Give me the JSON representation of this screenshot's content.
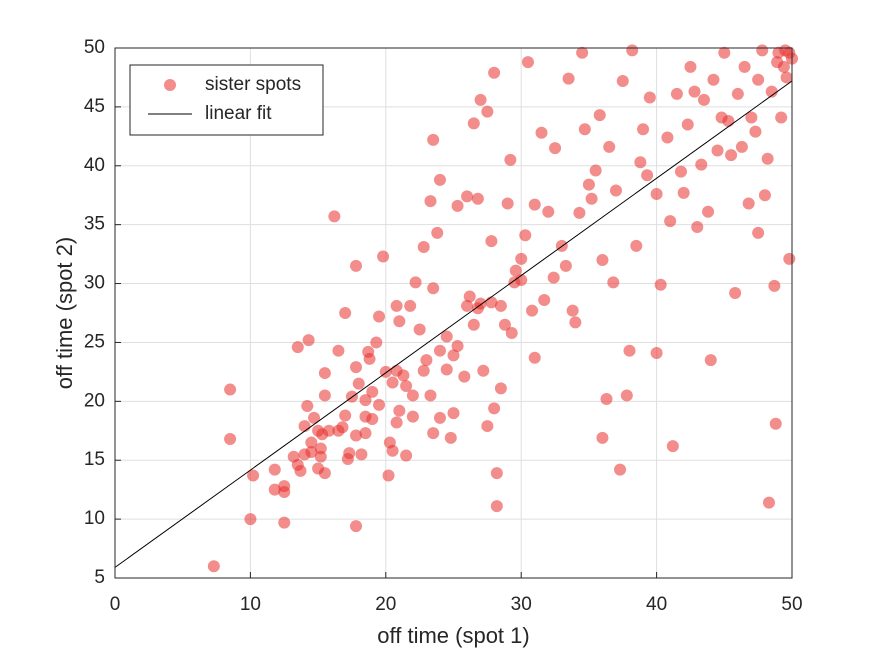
{
  "chart_data": {
    "type": "scatter",
    "xlabel": "off time (spot 1)",
    "ylabel": "off time (spot 2)",
    "xlim": [
      0,
      50
    ],
    "ylim": [
      5,
      50
    ],
    "xticks": [
      0,
      10,
      20,
      30,
      40,
      50
    ],
    "yticks": [
      5,
      10,
      15,
      20,
      25,
      30,
      35,
      40,
      45,
      50
    ],
    "grid": true,
    "legend": "upper left",
    "series": [
      {
        "name": "sister spots",
        "color": "#e8302b",
        "type": "scatter",
        "x": [
          7.3,
          8.5,
          8.5,
          10,
          10.2,
          11.8,
          11.8,
          12.5,
          12.5,
          12.5,
          13.2,
          13.5,
          13.7,
          14,
          14,
          14.2,
          14.3,
          14.5,
          14.5,
          14.7,
          15,
          15,
          15.2,
          15.2,
          15.3,
          15.5,
          15.5,
          15.5,
          15.8,
          16.2,
          16.5,
          16.5,
          16.8,
          17,
          17,
          17.2,
          17.3,
          17.5,
          17.8,
          17.8,
          17.8,
          17.8,
          18,
          18.2,
          18.5,
          18.5,
          18.7,
          18.8,
          19,
          19,
          19.3,
          19.5,
          19.5,
          19.8,
          20,
          20.2,
          20.3,
          20.5,
          20.5,
          20.8,
          20.8,
          21,
          21,
          21.3,
          21.5,
          21.5,
          21.8,
          22,
          22,
          22.2,
          22.5,
          22.8,
          23,
          23.3,
          23.3,
          23.5,
          23.5,
          23.5,
          23.8,
          24,
          24,
          24,
          24.5,
          24.5,
          24.8,
          25,
          25,
          25.3,
          25.8,
          26,
          26,
          26.2,
          26.5,
          26.5,
          26.8,
          27,
          27,
          27.2,
          27.5,
          27.5,
          27.8,
          28,
          28,
          28.2,
          28.2,
          28.5,
          28.5,
          28.8,
          29,
          29.2,
          29.3,
          29.5,
          30,
          30,
          30.3,
          30.5,
          30.8,
          31,
          31,
          31.5,
          32,
          32.5,
          33,
          33.3,
          33.5,
          33.8,
          34,
          34.3,
          34.5,
          34.7,
          35,
          35.2,
          35.5,
          35.8,
          36,
          36,
          36.3,
          36.5,
          36.8,
          37,
          37.3,
          37.5,
          37.8,
          38,
          38.2,
          38.5,
          38.8,
          39,
          39.3,
          39.5,
          40,
          40,
          40.3,
          40.8,
          41,
          41.2,
          41.5,
          41.8,
          42,
          42.3,
          42.5,
          42.8,
          43,
          43.3,
          43.5,
          43.8,
          44,
          44.2,
          44.5,
          44.8,
          45,
          45.3,
          45.5,
          45.8,
          46,
          46.3,
          46.5,
          46.8,
          47,
          47.3,
          47.5,
          47.8,
          48,
          48.2,
          48.3,
          48.5,
          48.7,
          48.8,
          49,
          49.2,
          49.4,
          49.6,
          49.8,
          49.8,
          50,
          49.5,
          48.9,
          47.5,
          26.8,
          27.8,
          29.6,
          32.4,
          31.7,
          25.3,
          22.8,
          18.5,
          20.8,
          13.5
        ],
        "values": [
          6.0,
          21.0,
          16.8,
          10,
          13.7,
          14.2,
          12.5,
          12.8,
          12.3,
          9.7,
          15.3,
          24.6,
          14.1,
          15.5,
          17.9,
          19.6,
          25.2,
          15.7,
          16.5,
          18.6,
          17.5,
          14.3,
          15.3,
          16,
          17.2,
          22.4,
          20.5,
          13.9,
          17.5,
          35.7,
          24.3,
          17.5,
          17.8,
          27.5,
          18.8,
          15.1,
          15.6,
          20.4,
          31.5,
          22.9,
          17.1,
          9.4,
          21.5,
          15.5,
          17.3,
          18.7,
          24.2,
          23.6,
          20.8,
          18.5,
          25,
          27.2,
          19.7,
          32.3,
          22.5,
          13.7,
          16.5,
          15.8,
          21.6,
          28.1,
          22.6,
          26.8,
          19.2,
          22.2,
          21.3,
          15.4,
          28.1,
          20.5,
          18.7,
          30.1,
          26.1,
          22.6,
          23.5,
          37,
          20.5,
          42.2,
          17.3,
          29.6,
          34.3,
          38.8,
          24.3,
          18.6,
          25.5,
          22.7,
          16.9,
          23.9,
          19,
          24.7,
          22.1,
          37.4,
          28.1,
          28.9,
          43.6,
          26.5,
          37.2,
          45.6,
          28.3,
          22.6,
          17.9,
          44.6,
          33.6,
          19.4,
          47.9,
          13.9,
          11.1,
          28.1,
          21.1,
          26.5,
          36.8,
          40.5,
          25.8,
          30.1,
          30.3,
          32.1,
          34.1,
          48.8,
          27.7,
          23.7,
          36.7,
          42.8,
          36.1,
          41.5,
          33.2,
          31.5,
          47.4,
          27.7,
          26.7,
          36,
          49.6,
          43.1,
          38.4,
          37.2,
          39.6,
          44.3,
          32,
          16.9,
          20.2,
          41.6,
          30.1,
          37.9,
          14.2,
          47.2,
          20.5,
          24.3,
          49.8,
          33.2,
          40.3,
          43.1,
          39.2,
          45.8,
          24.1,
          37.6,
          29.9,
          42.4,
          35.3,
          16.2,
          46.1,
          39.5,
          37.7,
          43.5,
          48.4,
          46.3,
          34.8,
          40.1,
          45.6,
          36.1,
          23.5,
          47.3,
          41.3,
          44.1,
          49.6,
          43.8,
          40.9,
          29.2,
          46.1,
          41.6,
          48.4,
          36.8,
          44.1,
          42.9,
          34.3,
          49.8,
          37.5,
          40.6,
          11.4,
          46.3,
          29.8,
          18.1,
          49.6,
          44.1,
          48.4,
          47.5,
          32.1,
          49.6,
          49.1,
          49.8,
          48.8,
          47.3,
          27.9,
          28.4,
          31.1,
          30.5,
          28.6,
          36.6,
          33.1,
          20.1,
          18.2,
          14.6
        ]
      },
      {
        "name": "linear fit",
        "color": "#000000",
        "type": "line",
        "x": [
          0,
          50
        ],
        "values": [
          5.9,
          47.2
        ]
      }
    ]
  }
}
